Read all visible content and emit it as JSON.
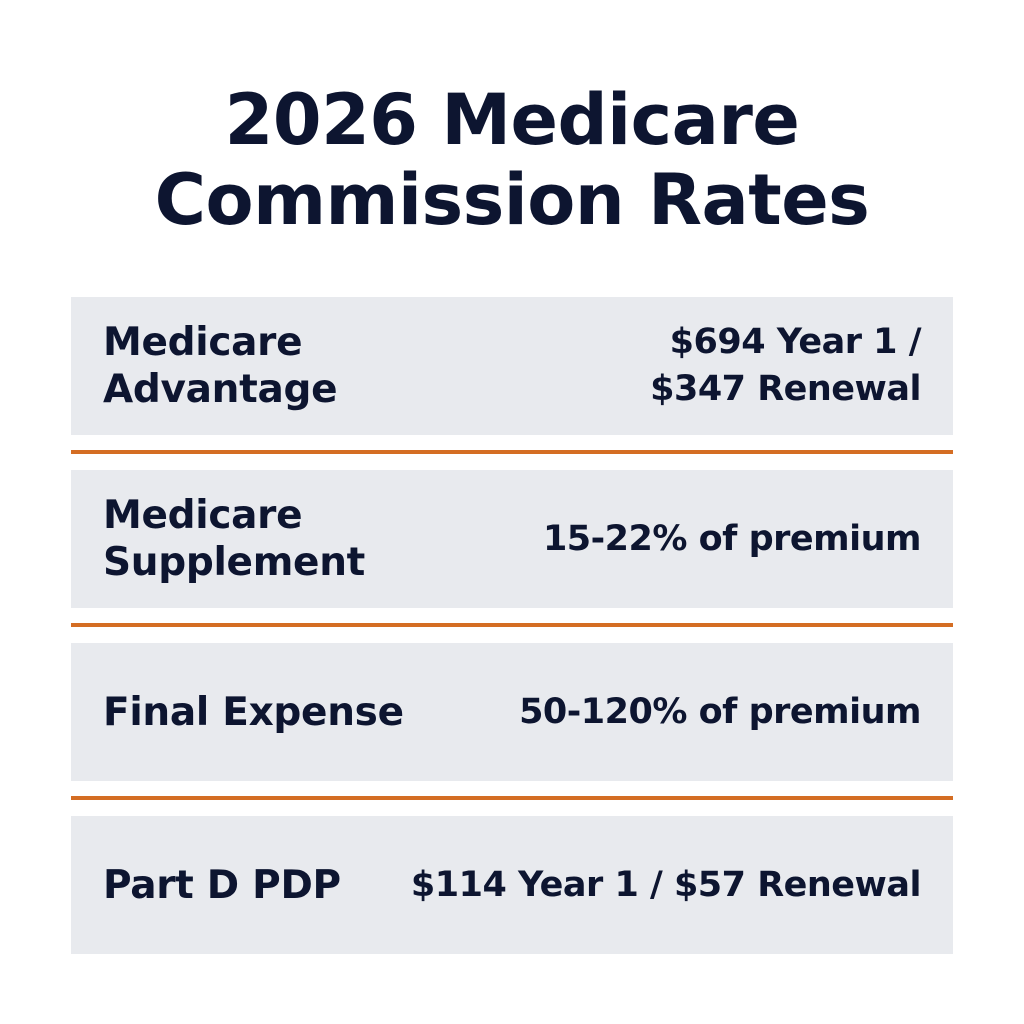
{
  "title": {
    "line1": "2026 Medicare",
    "line2": "Commission Rates"
  },
  "accent_color": "#d46d23",
  "rows": [
    {
      "label_line1": "Medicare",
      "label_line2": "Advantage",
      "value_line1": "$694 Year 1 /",
      "value_line2": "$347 Renewal"
    },
    {
      "label_line1": "Medicare",
      "label_line2": "Supplement",
      "value_line1": "15-22% of premium"
    },
    {
      "label_line1": "Final Expense",
      "value_line1": "50-120% of premium"
    },
    {
      "label_line1": "Part D PDP",
      "value_line1": "$114 Year 1 / $57 Renewal"
    }
  ]
}
